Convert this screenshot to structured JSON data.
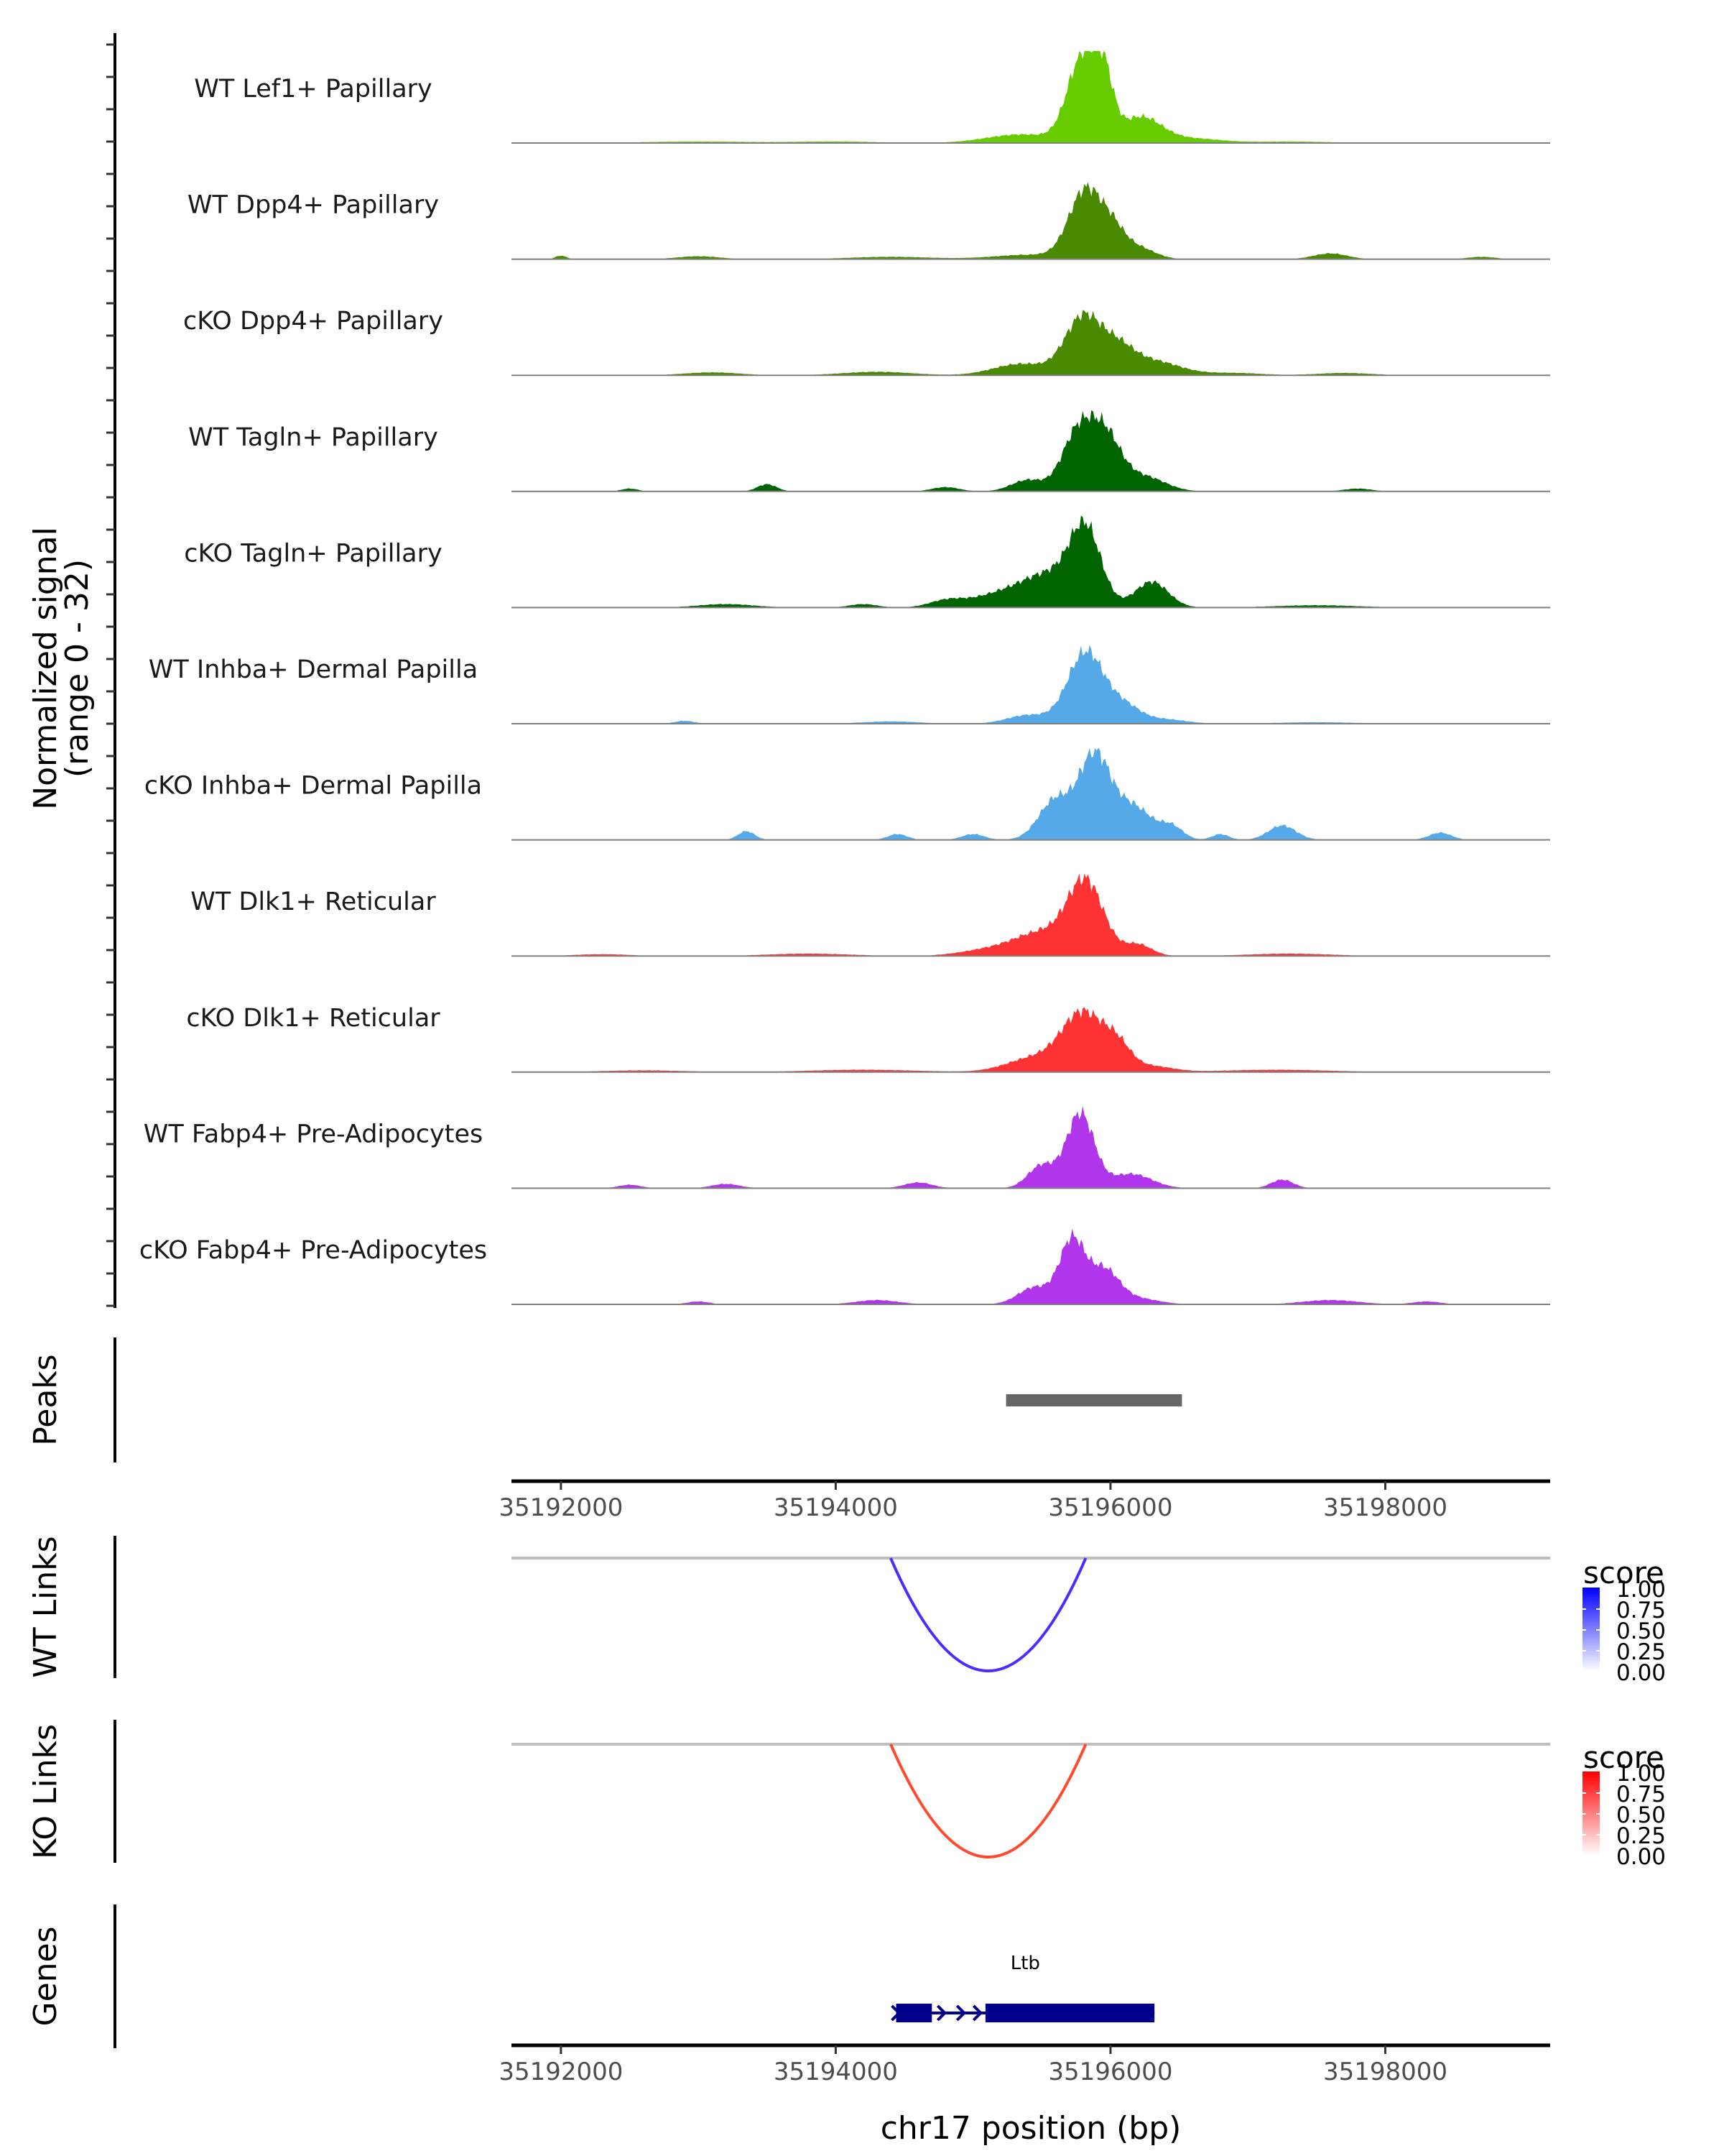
{
  "chart_data": {
    "type": "area",
    "title": "",
    "chromosome": "chr17",
    "xlabel": "chr17 position (bp)",
    "ylabel": "Normalized signal\n(range 0 - 32)",
    "ylabel_line1": "Normalized signal",
    "ylabel_line2": "(range 0 - 32)",
    "xlim": [
      35191640,
      35199200
    ],
    "ylim": [
      0,
      32
    ],
    "x_ticks": [
      35192000,
      35194000,
      35196000,
      35198000
    ],
    "x_tick_labels": [
      "35192000",
      "35194000",
      "35196000",
      "35198000"
    ],
    "coverage_tracks": [
      {
        "name": "WT Lef1+ Papillary",
        "color": "#66CC00",
        "peaks": [
          [
            35195800,
            30,
            110
          ],
          [
            35195950,
            18,
            70
          ],
          [
            35196220,
            9,
            150
          ],
          [
            35195350,
            3,
            250
          ],
          [
            35196600,
            1.5,
            200
          ],
          [
            35193000,
            0.5,
            400
          ],
          [
            35194000,
            0.5,
            300
          ],
          [
            35197300,
            0.5,
            300
          ]
        ]
      },
      {
        "name": "WT Dpp4+ Papillary",
        "color": "#4A8A00",
        "peaks": [
          [
            35195820,
            24,
            120
          ],
          [
            35196020,
            8,
            90
          ],
          [
            35196200,
            4,
            120
          ],
          [
            35195400,
            1.5,
            250
          ],
          [
            35197600,
            2,
            120
          ],
          [
            35192000,
            1.2,
            40
          ],
          [
            35193000,
            1,
            150
          ],
          [
            35194400,
            0.8,
            300
          ],
          [
            35198700,
            0.8,
            100
          ]
        ]
      },
      {
        "name": "cKO Dpp4+ Papillary",
        "color": "#4A8A00",
        "peaks": [
          [
            35195800,
            20,
            130
          ],
          [
            35196050,
            8,
            120
          ],
          [
            35196300,
            5,
            200
          ],
          [
            35195350,
            4,
            200
          ],
          [
            35193100,
            1,
            200
          ],
          [
            35194300,
            1.2,
            250
          ],
          [
            35196900,
            0.8,
            200
          ],
          [
            35197700,
            0.8,
            200
          ]
        ]
      },
      {
        "name": "WT Tagln+ Papillary",
        "color": "#006400",
        "peaks": [
          [
            35195750,
            18,
            110
          ],
          [
            35195950,
            20,
            120
          ],
          [
            35196250,
            5,
            150
          ],
          [
            35195400,
            4,
            120
          ],
          [
            35193500,
            2.5,
            70
          ],
          [
            35194800,
            1.5,
            100
          ],
          [
            35192500,
            1,
            60
          ],
          [
            35197800,
            1,
            100
          ]
        ]
      },
      {
        "name": "cKO Tagln+ Papillary",
        "color": "#006400",
        "peaks": [
          [
            35195820,
            24,
            110
          ],
          [
            35195600,
            10,
            200
          ],
          [
            35196300,
            9,
            120
          ],
          [
            35195250,
            5,
            250
          ],
          [
            35194800,
            2,
            120
          ],
          [
            35193200,
            1.2,
            200
          ],
          [
            35194200,
            1.2,
            100
          ],
          [
            35197500,
            0.8,
            300
          ]
        ]
      },
      {
        "name": "WT Inhba+ Dermal Papilla",
        "color": "#56A9E8",
        "peaks": [
          [
            35195820,
            25,
            130
          ],
          [
            35196100,
            6,
            120
          ],
          [
            35195400,
            3,
            150
          ],
          [
            35196400,
            1.5,
            150
          ],
          [
            35192900,
            1,
            70
          ],
          [
            35194400,
            0.8,
            200
          ],
          [
            35197500,
            0.5,
            300
          ]
        ]
      },
      {
        "name": "cKO Inhba+ Dermal Papilla",
        "color": "#56A9E8",
        "peaks": [
          [
            35195880,
            28,
            110
          ],
          [
            35195600,
            14,
            120
          ],
          [
            35196150,
            12,
            150
          ],
          [
            35196450,
            4,
            80
          ],
          [
            35197250,
            5,
            100
          ],
          [
            35193350,
            3,
            60
          ],
          [
            35194450,
            2,
            70
          ],
          [
            35195000,
            2,
            80
          ],
          [
            35196800,
            2,
            60
          ],
          [
            35198400,
            2.5,
            80
          ]
        ]
      },
      {
        "name": "WT Dlk1+ Reticular",
        "color": "#FF3333",
        "peaks": [
          [
            35195820,
            25,
            130
          ],
          [
            35195500,
            8,
            200
          ],
          [
            35196200,
            4,
            100
          ],
          [
            35195100,
            2,
            200
          ],
          [
            35193800,
            0.8,
            300
          ],
          [
            35197300,
            0.8,
            300
          ],
          [
            35192300,
            0.6,
            200
          ]
        ]
      },
      {
        "name": "cKO Dlk1+ Reticular",
        "color": "#FF3333",
        "peaks": [
          [
            35195800,
            20,
            150
          ],
          [
            35196050,
            8,
            100
          ],
          [
            35195450,
            5,
            200
          ],
          [
            35196300,
            2,
            150
          ],
          [
            35194200,
            0.8,
            400
          ],
          [
            35197200,
            0.8,
            400
          ],
          [
            35192600,
            0.6,
            300
          ]
        ]
      },
      {
        "name": "WT Fabp4+ Pre-Adipocytes",
        "color": "#B035EB",
        "peaks": [
          [
            35195780,
            26,
            100
          ],
          [
            35195500,
            8,
            100
          ],
          [
            35196150,
            5,
            150
          ],
          [
            35197250,
            3,
            80
          ],
          [
            35194600,
            2,
            100
          ],
          [
            35193200,
            1.5,
            100
          ],
          [
            35192500,
            1.2,
            80
          ]
        ]
      },
      {
        "name": "cKO Fabp4+ Pre-Adipocytes",
        "color": "#B035EB",
        "peaks": [
          [
            35195720,
            22,
            90
          ],
          [
            35195950,
            12,
            110
          ],
          [
            35195450,
            6,
            120
          ],
          [
            35196200,
            2,
            150
          ],
          [
            35194300,
            1.5,
            150
          ],
          [
            35197600,
            1.5,
            200
          ],
          [
            35193000,
            1,
            80
          ],
          [
            35198300,
            1,
            100
          ]
        ]
      }
    ],
    "peaks_track": {
      "label": "Peaks",
      "color": "#666666",
      "regions": [
        [
          35195240,
          35196520
        ]
      ]
    },
    "links_tracks": [
      {
        "label": "WT Links",
        "color": "#4B2BFF",
        "links": [
          {
            "start": 35194400,
            "end": 35195820,
            "score": 0.85
          }
        ],
        "legend": {
          "title": "score",
          "low_color": "#FFFFFF",
          "high_color": "#0000FF",
          "ticks": [
            "1.00",
            "0.75",
            "0.50",
            "0.25",
            "0.00"
          ]
        }
      },
      {
        "label": "KO Links",
        "color": "#FF4A2B",
        "links": [
          {
            "start": 35194400,
            "end": 35195820,
            "score": 0.85
          }
        ],
        "legend": {
          "title": "score",
          "low_color": "#FFFFFF",
          "high_color": "#FF0000",
          "ticks": [
            "1.00",
            "0.75",
            "0.50",
            "0.25",
            "0.00"
          ]
        }
      }
    ],
    "genes_track": {
      "label": "Genes",
      "color": "#00008B",
      "genes": [
        {
          "name": "Ltb",
          "strand": "+",
          "start": 35194440,
          "end": 35196320,
          "exons": [
            [
              35194440,
              35194700
            ],
            [
              35195090,
              35196320
            ]
          ]
        }
      ]
    }
  }
}
